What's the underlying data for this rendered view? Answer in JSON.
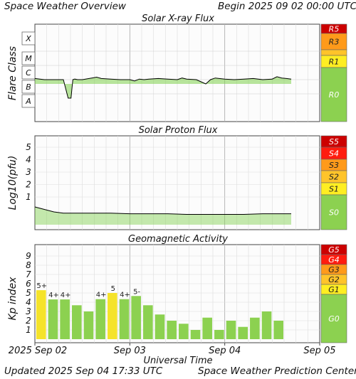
{
  "header": {
    "title": "Space Weather Overview",
    "begin": "Begin 2025 09 02 00:00 UTC"
  },
  "footer": {
    "updated": "Updated 2025 Sep 04 17:33 UTC",
    "center": "Space Weather Prediction Center"
  },
  "colors": {
    "bar_green": "#8cd150",
    "bar_yellow": "#f5e32a",
    "flux_line": "#000000",
    "flux_fill": "#7ed04b",
    "s0_green": "#8cd150",
    "level1": "#ffee22",
    "level2": "#ffc42a",
    "level3": "#ff9a1a",
    "level4": "#ff1c0f",
    "level5": "#cc0000"
  },
  "chart_data": [
    {
      "type": "line",
      "title": "Solar X-ray Flux",
      "ylabel": "Flare Class",
      "yticks": [
        "X",
        "M",
        "C",
        "B",
        "A"
      ],
      "scale_labels": [
        "R5",
        "R3",
        "R1",
        "R0"
      ],
      "x_unit": "days since 2025-09-02 00:00 UTC",
      "x": [
        0.0,
        0.1,
        0.2,
        0.3,
        0.35,
        0.38,
        0.4,
        0.42,
        0.45,
        0.5,
        0.6,
        0.65,
        0.7,
        0.8,
        0.9,
        1.0,
        1.05,
        1.1,
        1.15,
        1.2,
        1.3,
        1.4,
        1.5,
        1.55,
        1.6,
        1.7,
        1.8,
        1.85,
        1.9,
        2.0,
        2.1,
        2.2,
        2.3,
        2.4,
        2.5,
        2.55,
        2.6,
        2.65,
        2.7
      ],
      "y_class": [
        "C1.2",
        "C1.0",
        "C1.0",
        "C1.0",
        "A5.0",
        "A5.0",
        "C1.0",
        "C1.1",
        "C1.0",
        "C1.0",
        "C1.3",
        "C1.5",
        "C1.2",
        "C1.1",
        "C1.0",
        "C1.0",
        "B8.0",
        "C1.1",
        "C1.0",
        "C1.1",
        "C1.2",
        "C1.1",
        "C1.0",
        "C1.3",
        "C1.1",
        "C1.0",
        "B5.0",
        "C1.0",
        "C1.3",
        "C1.1",
        "C1.0",
        "C1.1",
        "C1.2",
        "C1.0",
        "C1.1",
        "C1.6",
        "C1.3",
        "C1.2",
        "C1.1"
      ]
    },
    {
      "type": "line",
      "title": "Solar Proton Flux",
      "ylabel": "Log10(pfu)",
      "yticks": [
        "5",
        "4",
        "3",
        "2",
        "1"
      ],
      "scale_labels": [
        "S5",
        "S4",
        "S3",
        "S2",
        "S1",
        "S0"
      ],
      "x_unit": "days since 2025-09-02 00:00 UTC",
      "x": [
        0.0,
        0.1,
        0.2,
        0.3,
        0.4,
        0.6,
        0.8,
        1.0,
        1.2,
        1.4,
        1.6,
        1.8,
        2.0,
        2.2,
        2.4,
        2.6,
        2.7
      ],
      "y": [
        0.2,
        0.0,
        -0.2,
        -0.3,
        -0.3,
        -0.3,
        -0.3,
        -0.35,
        -0.35,
        -0.35,
        -0.4,
        -0.4,
        -0.4,
        -0.4,
        -0.35,
        -0.35,
        -0.35
      ],
      "ylim": [
        -1,
        6
      ]
    },
    {
      "type": "bar",
      "title": "Geomagnetic Activity",
      "ylabel": "Kp index",
      "yticks": [
        "9",
        "8",
        "7",
        "6",
        "5",
        "4",
        "3",
        "2",
        "1"
      ],
      "scale_labels": [
        "G5",
        "G4",
        "G3",
        "G2",
        "G1",
        "G0"
      ],
      "xlabel": "Universal Time",
      "xticks": [
        "2025 Sep 02",
        "Sep 03",
        "Sep 04",
        "Sep 05"
      ],
      "ylim": [
        0,
        10
      ],
      "values": [
        5.3,
        4.3,
        4.3,
        3.67,
        3.0,
        4.33,
        5.0,
        4.33,
        4.67,
        3.67,
        2.67,
        2.0,
        1.67,
        1.0,
        2.33,
        1.0,
        2.0,
        1.33,
        2.33,
        3.0,
        2.0
      ],
      "labels": [
        "5+",
        "4+",
        "4+",
        "",
        "",
        "4+",
        "5",
        "4+",
        "5-",
        "",
        "",
        "",
        "",
        "",
        "",
        "",
        "",
        "",
        "",
        "",
        ""
      ],
      "colors": [
        "yellow",
        "green",
        "green",
        "green",
        "green",
        "green",
        "yellow",
        "green",
        "green",
        "green",
        "green",
        "green",
        "green",
        "green",
        "green",
        "green",
        "green",
        "green",
        "green",
        "green",
        "green"
      ]
    }
  ]
}
